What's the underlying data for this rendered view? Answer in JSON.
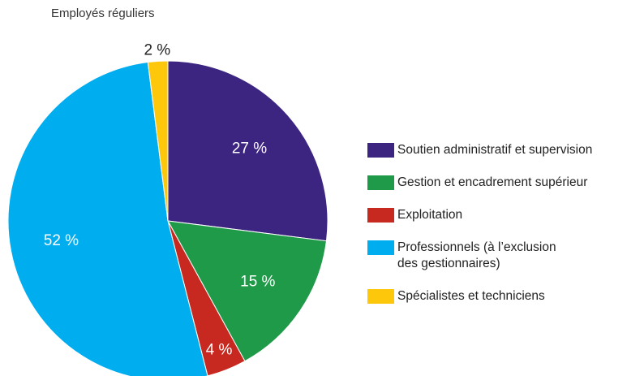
{
  "chart_data": {
    "type": "pie",
    "title": "Employés réguliers",
    "categories": [
      "Soutien administratif et supervision",
      "Gestion et encadrement supérieur",
      "Exploitation",
      "Professionnels (à l’exclusion\ndes gestionnaires)",
      "Spécialistes et techniciens"
    ],
    "values": [
      27,
      15,
      4,
      52,
      2
    ],
    "value_labels": [
      "27 %",
      "15 %",
      "4 %",
      "52 %",
      "2 %"
    ],
    "colors": [
      "#3c2580",
      "#1f9a48",
      "#c7281f",
      "#00aeef",
      "#fdc70b"
    ],
    "legend": "right"
  }
}
